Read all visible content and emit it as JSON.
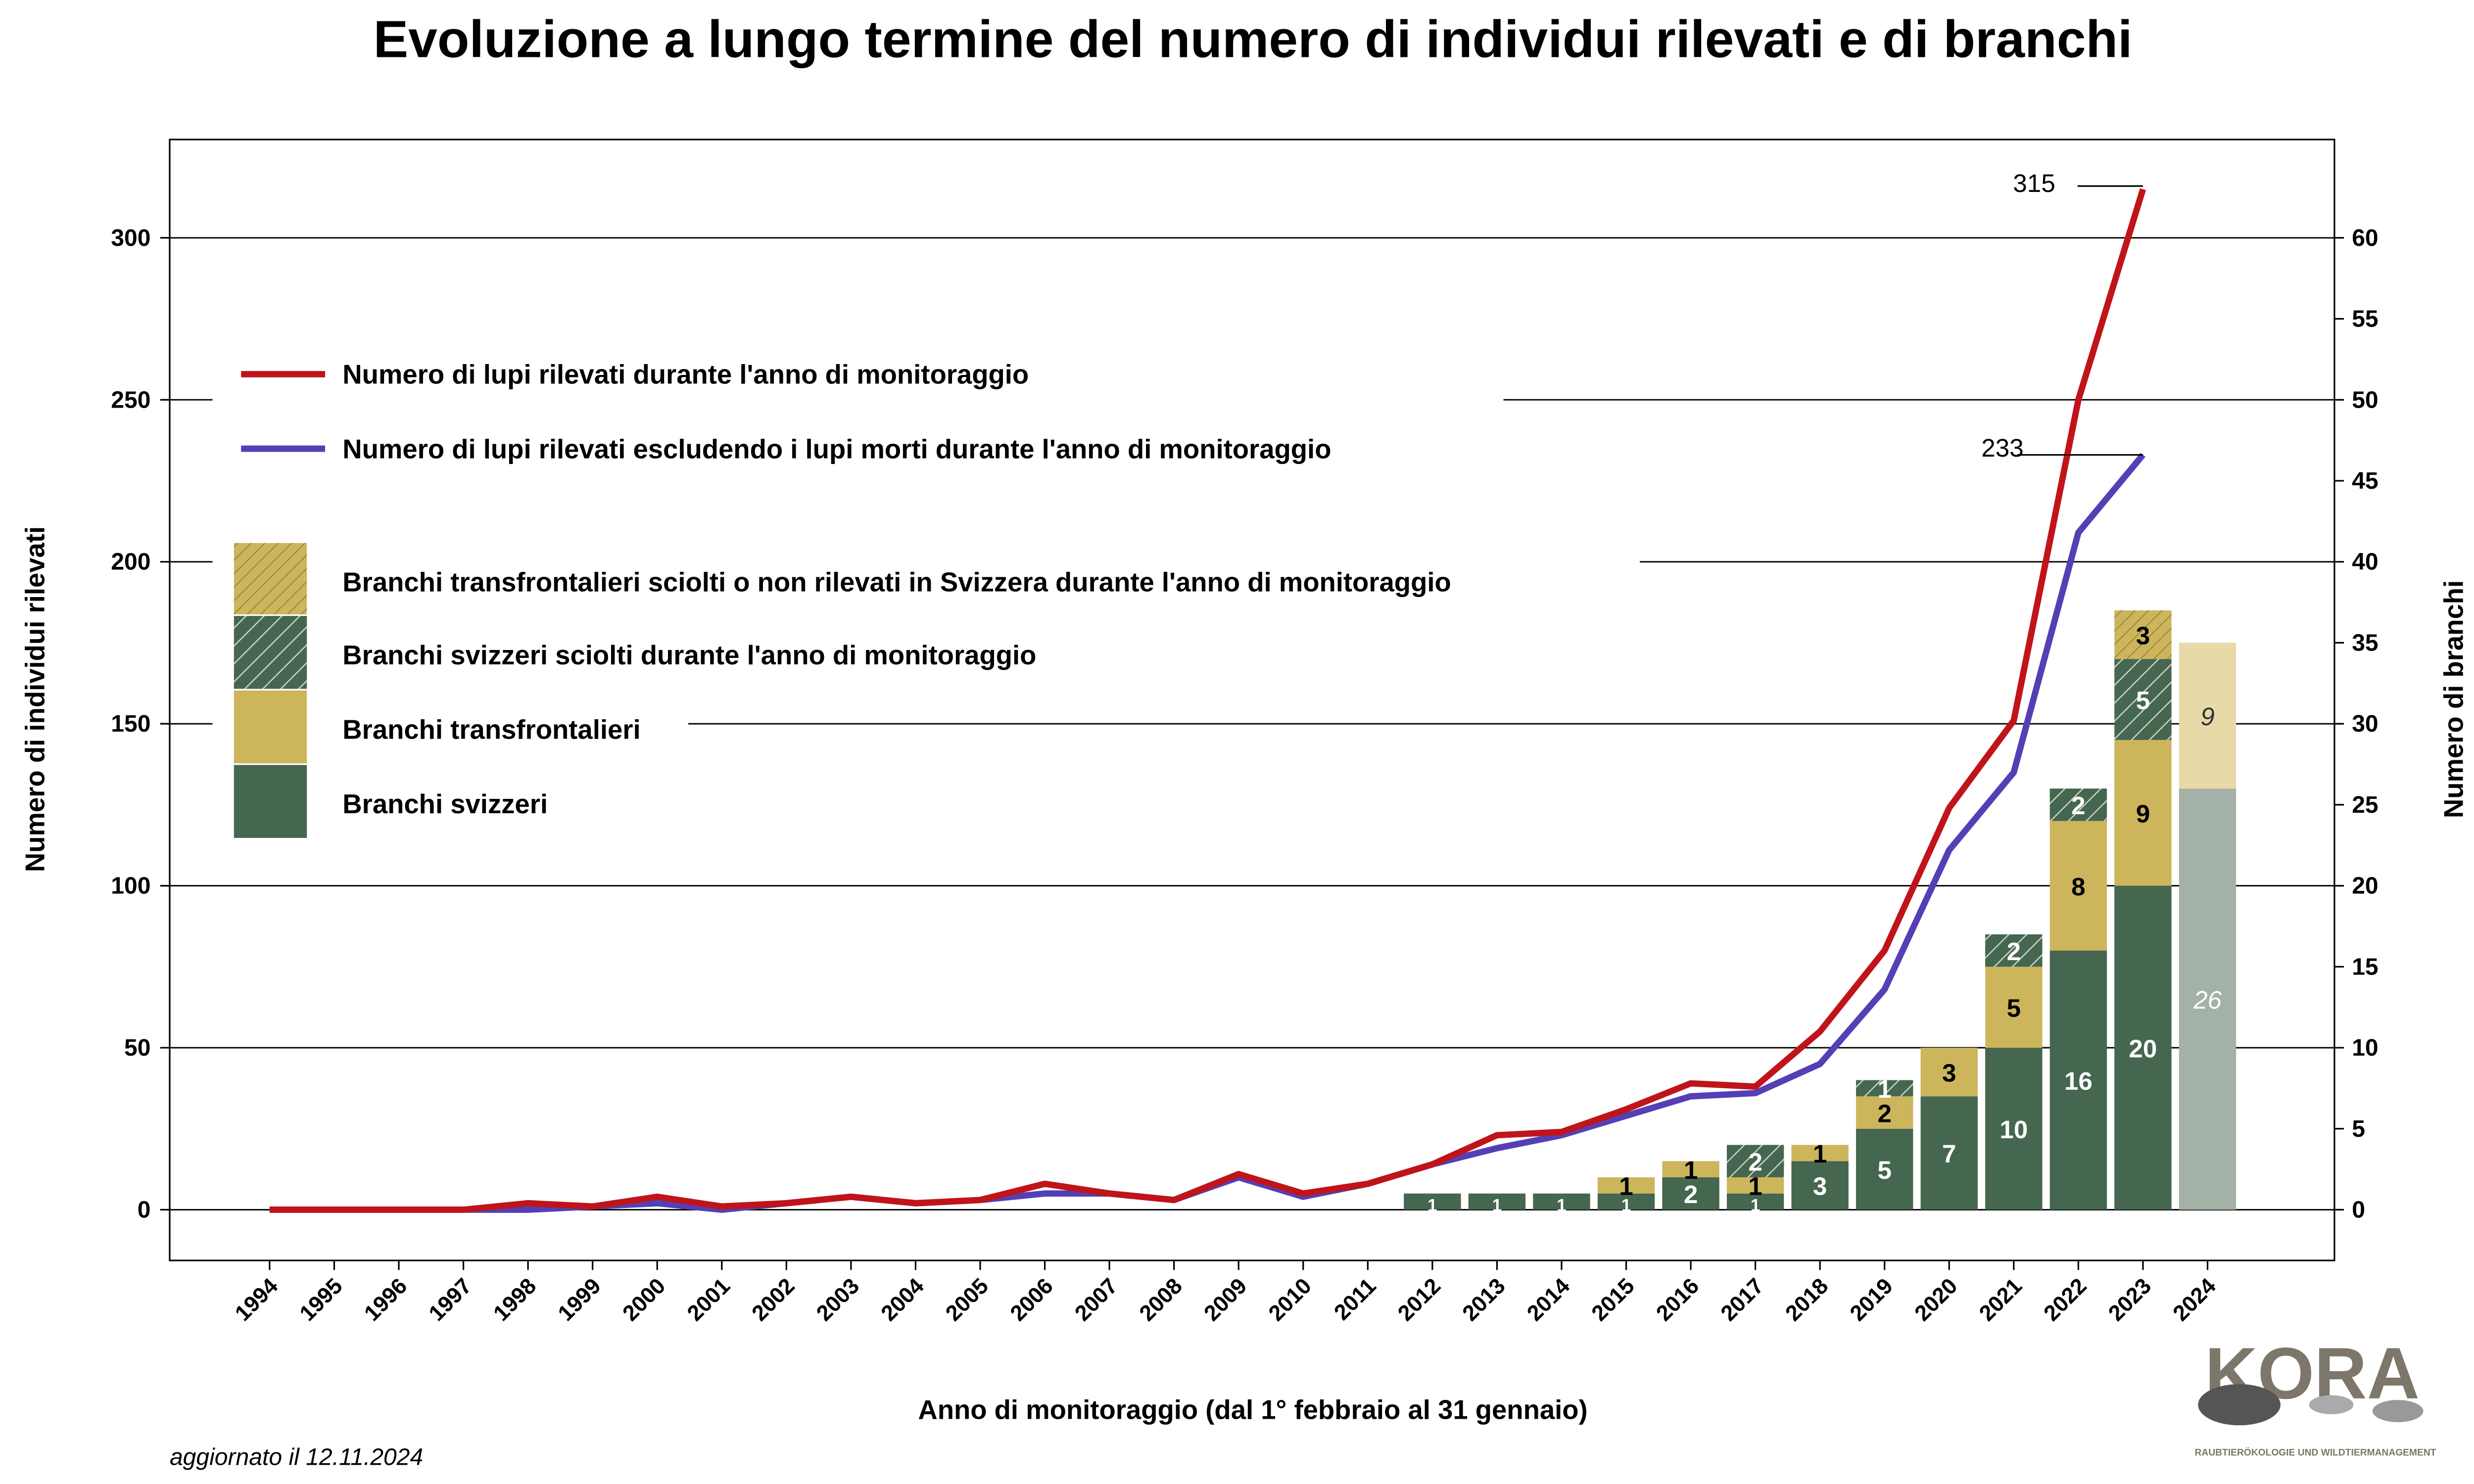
{
  "chart_data": {
    "type": "bar+line",
    "title": "Evoluzione a lungo termine del numero di individui rilevati e di branchi",
    "xlabel": "Anno di monitoraggio (dal 1° febbraio al 31 gennaio)",
    "ylabel": "Numero di individui rilevati",
    "y2label": "Numero di branchi",
    "ylim": [
      -15,
      330
    ],
    "y2lim": [
      -3,
      66
    ],
    "yticks": [
      0,
      50,
      100,
      150,
      200,
      250,
      300
    ],
    "y2ticks": [
      0,
      5,
      10,
      15,
      20,
      25,
      30,
      35,
      40,
      45,
      50,
      55,
      60
    ],
    "grid": true,
    "legend_position": "top-left",
    "x": [
      1994,
      1995,
      1996,
      1997,
      1998,
      1999,
      2000,
      2001,
      2002,
      2003,
      2004,
      2005,
      2006,
      2007,
      2008,
      2009,
      2010,
      2011,
      2012,
      2013,
      2014,
      2015,
      2016,
      2017,
      2018,
      2019,
      2020,
      2021,
      2022,
      2023,
      2024
    ],
    "lines": [
      {
        "name": "Numero di lupi rilevati durante l'anno di monitoraggio",
        "color": "#c0141a",
        "values": [
          0,
          0,
          0,
          0,
          2,
          1,
          4,
          1,
          2,
          4,
          2,
          3,
          8,
          5,
          3,
          11,
          5,
          8,
          14,
          23,
          24,
          31,
          39,
          38,
          55,
          80,
          124,
          151,
          250,
          315,
          null
        ],
        "end_label": "315"
      },
      {
        "name": "Numero di lupi rilevati escludendo i lupi morti durante l'anno di monitoraggio",
        "color": "#543fb5",
        "values": [
          0,
          0,
          0,
          0,
          0,
          1,
          2,
          0,
          2,
          4,
          2,
          3,
          5,
          5,
          3,
          10,
          4,
          8,
          14,
          19,
          23,
          29,
          35,
          36,
          45,
          68,
          111,
          135,
          209,
          233,
          null
        ],
        "end_label": "233"
      }
    ],
    "bar_series": [
      {
        "name": "Branchi svizzeri",
        "color": "#45664f",
        "text_color": "#ffffff",
        "hatched": false,
        "values": [
          0,
          0,
          0,
          0,
          0,
          0,
          0,
          0,
          0,
          0,
          0,
          0,
          0,
          0,
          0,
          0,
          0,
          0,
          1,
          1,
          1,
          1,
          2,
          1,
          3,
          5,
          7,
          10,
          16,
          20,
          0
        ]
      },
      {
        "name": "Branchi transfrontalieri",
        "color": "#cdb55c",
        "text_color": "#000000",
        "hatched": false,
        "values": [
          0,
          0,
          0,
          0,
          0,
          0,
          0,
          0,
          0,
          0,
          0,
          0,
          0,
          0,
          0,
          0,
          0,
          0,
          0,
          0,
          0,
          1,
          1,
          1,
          1,
          2,
          3,
          5,
          8,
          9,
          0
        ]
      },
      {
        "name": "Branchi svizzeri sciolti durante l'anno di monitoraggio",
        "color": "#45664f",
        "text_color": "#ffffff",
        "hatched": true,
        "values": [
          0,
          0,
          0,
          0,
          0,
          0,
          0,
          0,
          0,
          0,
          0,
          0,
          0,
          0,
          0,
          0,
          0,
          0,
          0,
          0,
          0,
          0,
          0,
          2,
          0,
          1,
          0,
          2,
          2,
          5,
          0
        ]
      },
      {
        "name": "Branchi transfrontalieri sciolti o non rilevati in Svizzera durante l'anno di monitoraggio",
        "color": "#cdb55c",
        "text_color": "#000000",
        "hatched": true,
        "values": [
          0,
          0,
          0,
          0,
          0,
          0,
          0,
          0,
          0,
          0,
          0,
          0,
          0,
          0,
          0,
          0,
          0,
          0,
          0,
          0,
          0,
          0,
          0,
          0,
          0,
          0,
          0,
          0,
          0,
          3,
          0
        ]
      }
    ],
    "provisional_2024": {
      "branchi_svizzeri": 26,
      "branchi_transfrontalieri": 9,
      "colors": [
        "#a3b1a6",
        "#e8d9a8"
      ]
    },
    "legend_order": [
      "Numero di lupi rilevati durante l'anno di monitoraggio",
      "Numero di lupi rilevati escludendo i lupi morti durante l'anno di monitoraggio",
      "Branchi transfrontalieri sciolti o non rilevati in Svizzera durante l'anno di monitoraggio",
      "Branchi svizzeri sciolti durante l'anno di monitoraggio",
      "Branchi transfrontalieri",
      "Branchi svizzeri"
    ]
  },
  "footer": {
    "updated": "aggiornato il 12.11.2024"
  },
  "logo": {
    "name": "KORA",
    "tagline": "RAUBTIERÖKOLOGIE UND WILDTIERMANAGEMENT"
  }
}
